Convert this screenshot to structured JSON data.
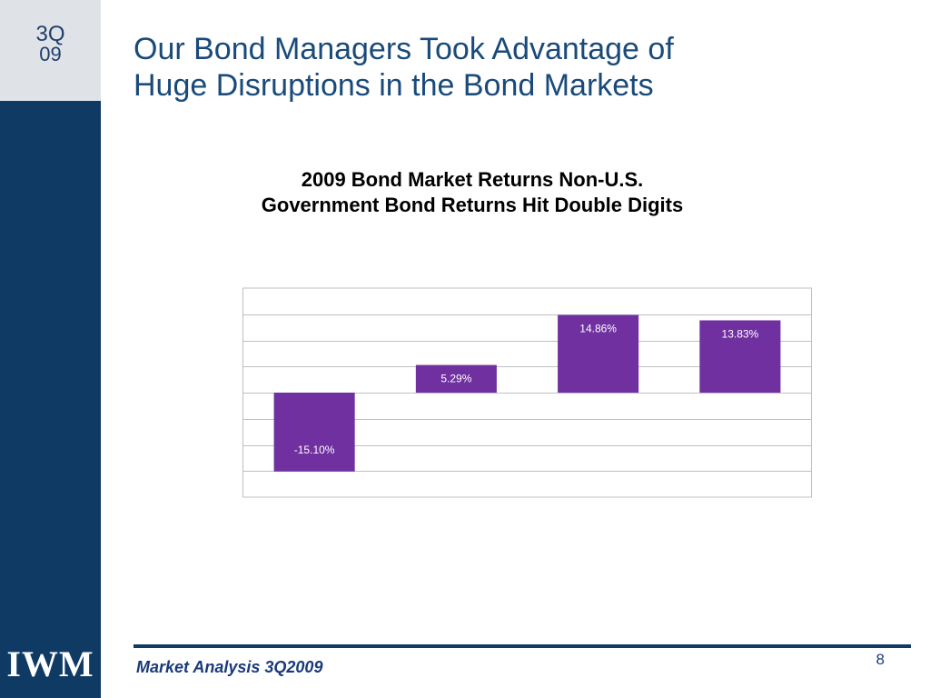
{
  "badge": {
    "line1": "3Q",
    "line2": "09"
  },
  "logo_text": "IWM",
  "title": {
    "line1": "Our Bond Managers Took Advantage of",
    "line2": "Huge Disruptions in the Bond Markets"
  },
  "footer": {
    "text": "Market Analysis 3Q2009",
    "page_number": "8"
  },
  "colors": {
    "navy": "#0e3a64",
    "bar": "#7030a0",
    "title_blue": "#1a4a7a"
  },
  "chart_data": {
    "type": "bar",
    "title_lines": [
      "2009 Bond Market Returns Non-U.S.",
      "Government Bond Returns Hit Double Digits"
    ],
    "categories": [
      "",
      "",
      "",
      ""
    ],
    "values": [
      -15.1,
      5.29,
      14.86,
      13.83
    ],
    "labels": [
      "-15.10%",
      "5.29%",
      "14.86%",
      "13.83%"
    ],
    "ylim": [
      -20,
      20
    ],
    "grid": true
  }
}
